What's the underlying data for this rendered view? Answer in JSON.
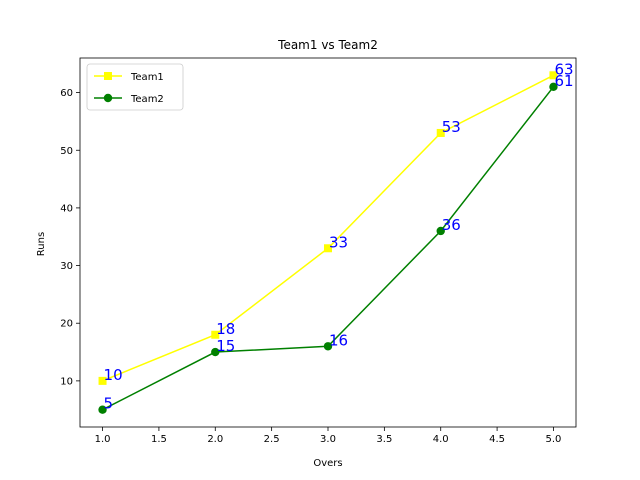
{
  "chart_data": {
    "type": "line",
    "title": "Team1 vs Team2",
    "xlabel": "Overs",
    "ylabel": "Runs",
    "x": [
      1,
      2,
      3,
      4,
      5
    ],
    "xlim": [
      0.8,
      5.2
    ],
    "ylim": [
      2,
      66
    ],
    "xticks": [
      1.0,
      1.5,
      2.0,
      2.5,
      3.0,
      3.5,
      4.0,
      4.5,
      5.0
    ],
    "xtick_labels": [
      "1.0",
      "1.5",
      "2.0",
      "2.5",
      "3.0",
      "3.5",
      "4.0",
      "4.5",
      "5.0"
    ],
    "yticks": [
      10,
      20,
      30,
      40,
      50,
      60
    ],
    "ytick_labels": [
      "10",
      "20",
      "30",
      "40",
      "50",
      "60"
    ],
    "grid": false,
    "legend_position": "top-left",
    "data_label_color": "#0000ff",
    "series": [
      {
        "name": "Team1",
        "values": [
          10,
          18,
          33,
          53,
          63
        ],
        "color": "#ffff00",
        "marker": "square"
      },
      {
        "name": "Team2",
        "values": [
          5,
          15,
          16,
          36,
          61
        ],
        "color": "#008000",
        "marker": "circle"
      }
    ]
  }
}
